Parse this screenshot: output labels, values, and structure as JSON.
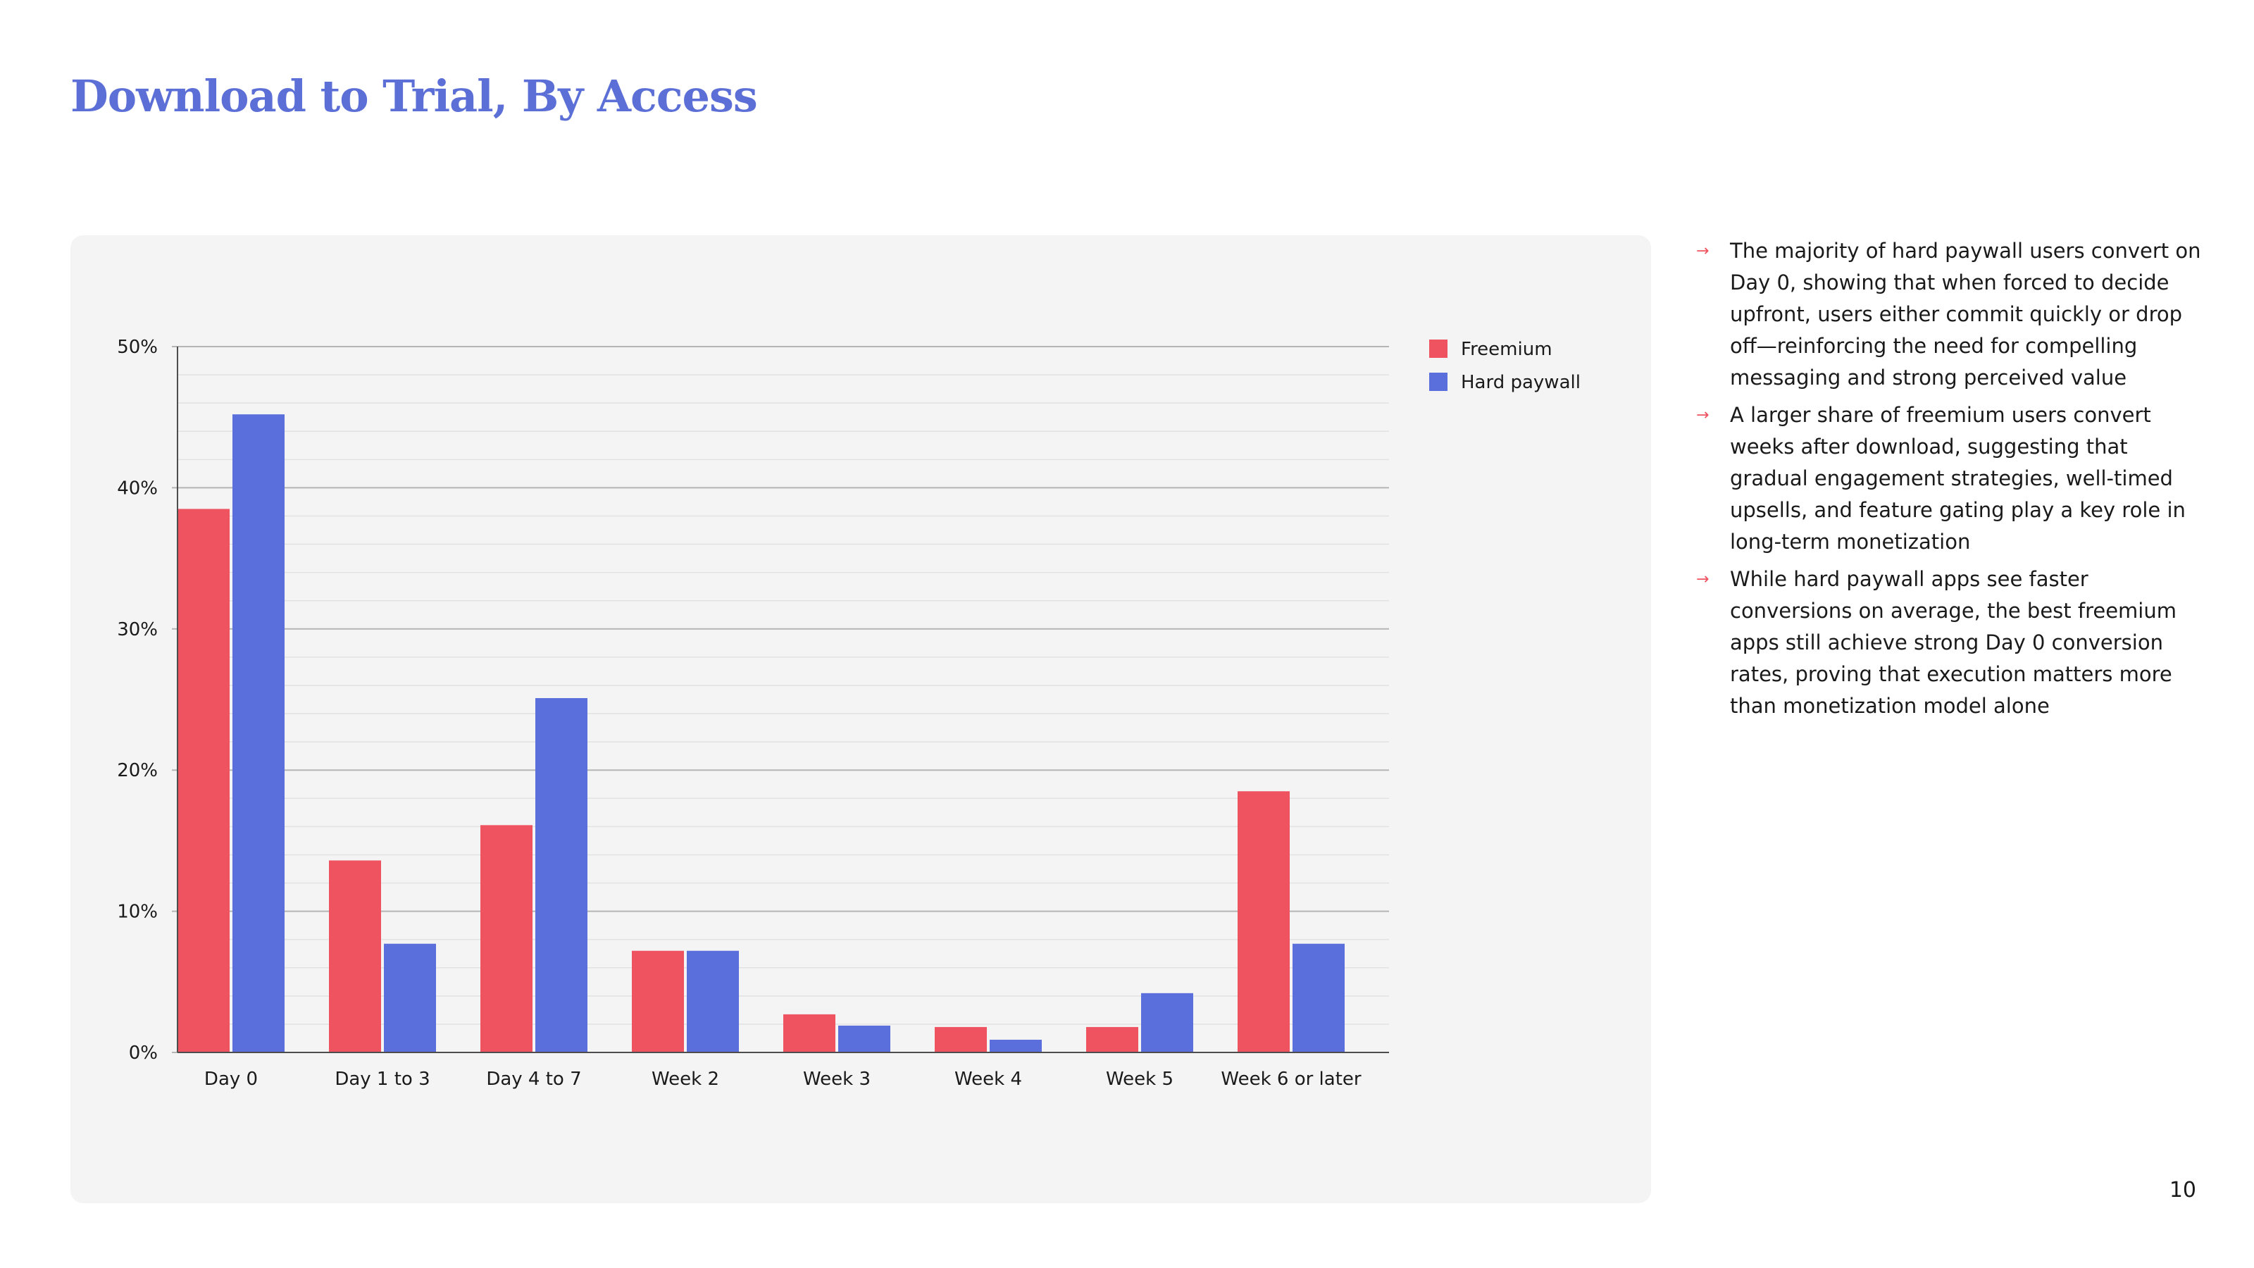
{
  "page": {
    "title": "Download to Trial, By Access",
    "page_number": "10"
  },
  "notes": [
    "The majority of hard paywall users convert on Day 0, showing that when forced to decide upfront, users either commit quickly or drop off—reinforcing the need for compelling messaging and strong perceived value",
    "A larger share of freemium users convert weeks after download, suggesting that gradual engagement strategies, well-timed upsells, and feature gating play a key role in long-term monetization",
    "While hard paywall apps see faster conversions on average, the best freemium apps still achieve strong Day 0 conversion rates, proving that execution matters more than monetization model alone"
  ],
  "note_arrow": "→",
  "chart_data": {
    "type": "bar",
    "title": "Download to Trial, By Access",
    "xlabel": "",
    "ylabel": "",
    "categories": [
      "Day 0",
      "Day 1 to 3",
      "Day 4 to 7",
      "Week 2",
      "Week 3",
      "Week 4",
      "Week 5",
      "Week 6 or later"
    ],
    "series": [
      {
        "name": "Freemium",
        "color": "#ef5360",
        "values": [
          38.5,
          13.6,
          16.1,
          7.2,
          2.7,
          1.8,
          1.8,
          18.5
        ]
      },
      {
        "name": "Hard paywall",
        "color": "#5a6edc",
        "values": [
          45.2,
          7.7,
          25.1,
          7.2,
          1.9,
          0.9,
          4.2,
          7.7
        ]
      }
    ],
    "ylim": [
      0,
      50
    ],
    "yticks": [
      0,
      10,
      20,
      30,
      40,
      50
    ],
    "ytick_labels": [
      "0%",
      "10%",
      "20%",
      "30%",
      "40%",
      "50%"
    ],
    "grid": true,
    "legend": "top-right"
  }
}
